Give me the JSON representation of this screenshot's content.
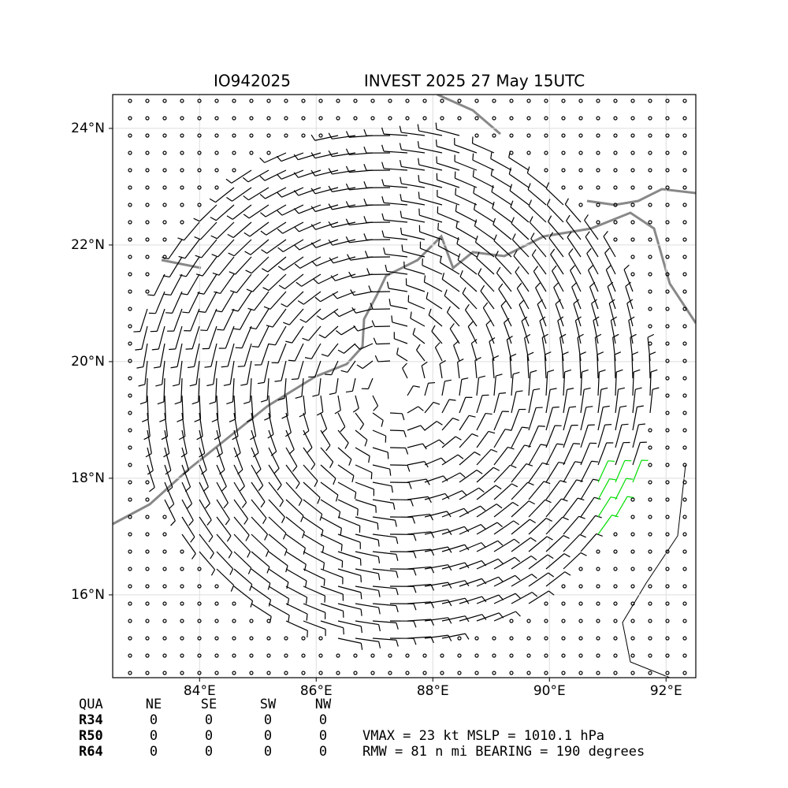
{
  "map": {
    "title_left": "IO942025",
    "title_right": "INVEST 2025 27 May 15UTC",
    "xlim": [
      82.51,
      92.51
    ],
    "ylim": [
      14.58,
      24.58
    ],
    "xticks": [
      {
        "value": 84,
        "label": "84°E"
      },
      {
        "value": 86,
        "label": "86°E"
      },
      {
        "value": 88,
        "label": "88°E"
      },
      {
        "value": 90,
        "label": "90°E"
      },
      {
        "value": 92,
        "label": "92°E"
      }
    ],
    "yticks": [
      {
        "value": 16,
        "label": "16°N"
      },
      {
        "value": 18,
        "label": "18°N"
      },
      {
        "value": 20,
        "label": "20°N"
      },
      {
        "value": 22,
        "label": "22°N"
      },
      {
        "value": 24,
        "label": "24°N"
      }
    ],
    "grid": true,
    "table": {
      "header": [
        "QUA",
        "NE",
        "SE",
        "SW",
        "NW"
      ],
      "rows": [
        [
          "R34",
          "0",
          "0",
          "0",
          "0"
        ],
        [
          "R50",
          "0",
          "0",
          "0",
          "0"
        ],
        [
          "R64",
          "0",
          "0",
          "0",
          "0"
        ]
      ]
    },
    "info": [
      "VMAX =  23 kt MSLP = 1010.1 hPa",
      "RMW =  81 n mi BEARING = 190 degrees"
    ]
  }
}
